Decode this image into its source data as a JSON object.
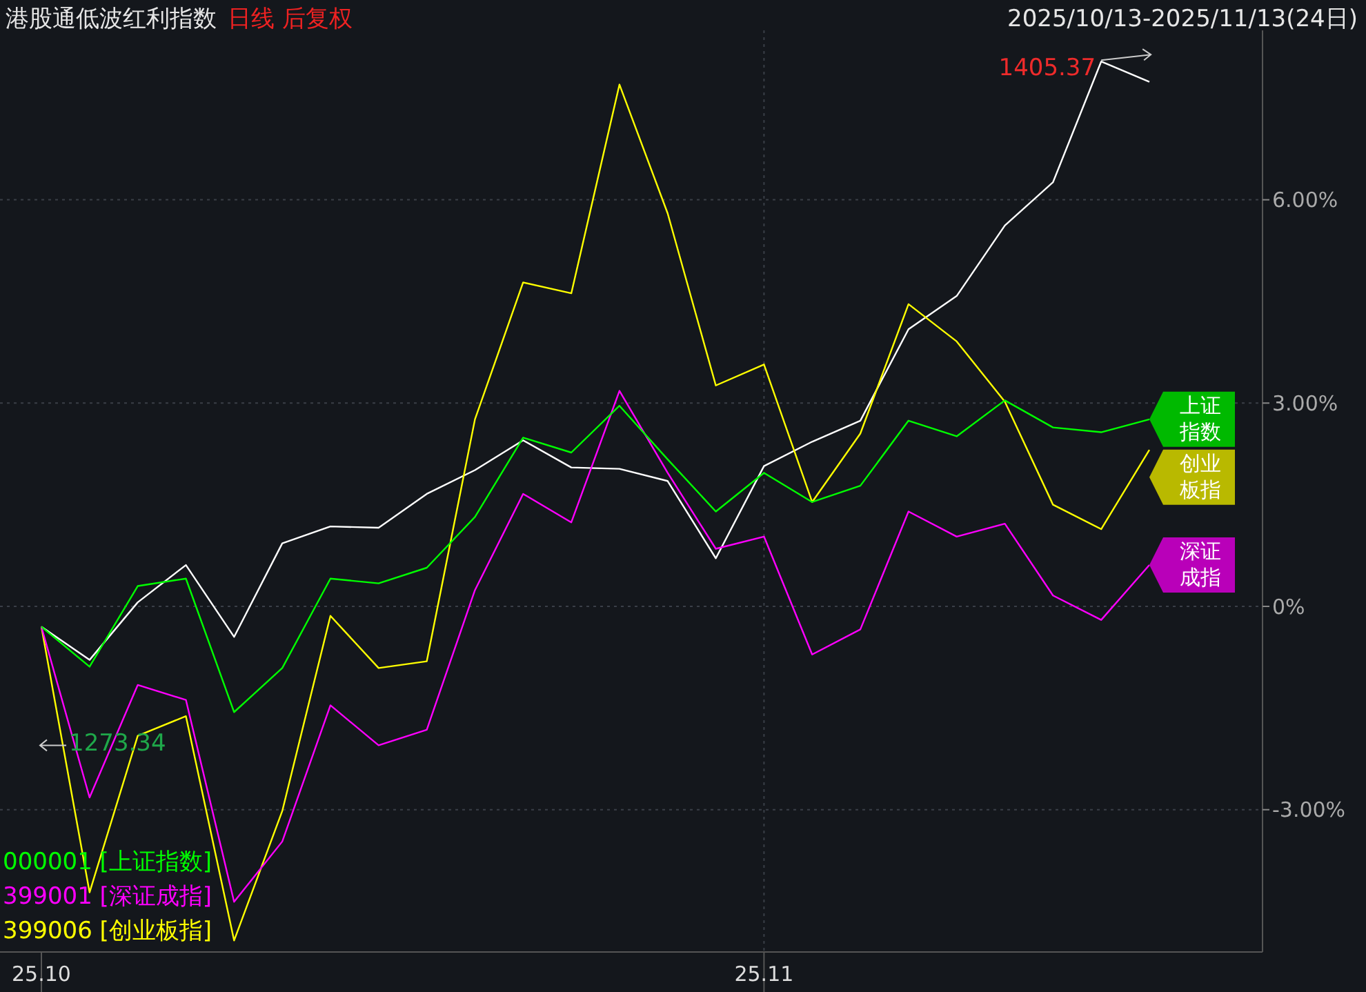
{
  "chart_data": {
    "type": "line",
    "title": "港股通低波红利指数",
    "subtitle": "日线 后复权",
    "annotations": [
      "2025/10/13-2025/11/13(24日)",
      "1405.37",
      "1273.34",
      "创业板指",
      "深证成指",
      "上证指数"
    ],
    "categories": [
      "25.10",
      null,
      null,
      null,
      null,
      null,
      null,
      null,
      null,
      null,
      null,
      null,
      null,
      null,
      null,
      "25.11",
      null,
      null,
      null,
      null,
      null,
      null,
      null,
      null
    ],
    "series": [
      {
        "color": "#ffffff",
        "values": [
          -0.3,
          -0.79,
          0.06,
          0.61,
          -0.45,
          0.93,
          1.18,
          1.16,
          1.66,
          2.01,
          2.45,
          2.05,
          2.03,
          1.85,
          0.71,
          2.07,
          2.43,
          2.74,
          4.09,
          4.58,
          5.62,
          6.26,
          8.04,
          7.74
        ]
      },
      {
        "name": "399006 [创业板指]",
        "color": "#ffff00",
        "values": [
          -0.3,
          -4.22,
          -1.91,
          -1.62,
          -4.93,
          -3.02,
          -0.14,
          -0.91,
          -0.81,
          2.76,
          4.78,
          4.62,
          7.7,
          5.8,
          3.26,
          3.57,
          1.54,
          2.55,
          4.46,
          3.91,
          3.02,
          1.5,
          1.14,
          2.31
        ]
      },
      {
        "name": "399001 [深证成指]",
        "color": "#ff00ff",
        "values": [
          -0.3,
          -2.82,
          -1.16,
          -1.38,
          -4.36,
          -3.47,
          -1.46,
          -2.05,
          -1.82,
          0.24,
          1.66,
          1.24,
          3.18,
          1.97,
          0.85,
          1.03,
          -0.71,
          -0.34,
          1.4,
          1.03,
          1.22,
          0.16,
          -0.2,
          0.61
        ]
      },
      {
        "name": "000001 [上证指数]",
        "color": "#00ff00",
        "values": [
          -0.3,
          -0.89,
          0.3,
          0.41,
          -1.56,
          -0.91,
          0.41,
          0.34,
          0.57,
          1.32,
          2.49,
          2.27,
          2.96,
          2.17,
          1.4,
          1.97,
          1.54,
          1.78,
          2.74,
          2.51,
          3.04,
          2.64,
          2.57,
          2.76
        ]
      }
    ],
    "ylim": [
      -5.1,
      8.5
    ],
    "yticks": [
      {
        "value": -3,
        "label": "-3.00%"
      },
      {
        "value": 0,
        "label": "0%"
      },
      {
        "value": 3,
        "label": "3.00%"
      },
      {
        "value": 6,
        "label": "6.00%"
      }
    ],
    "grid": true,
    "legend": "bottom left",
    "marker": "none",
    "line_style": "solid"
  }
}
